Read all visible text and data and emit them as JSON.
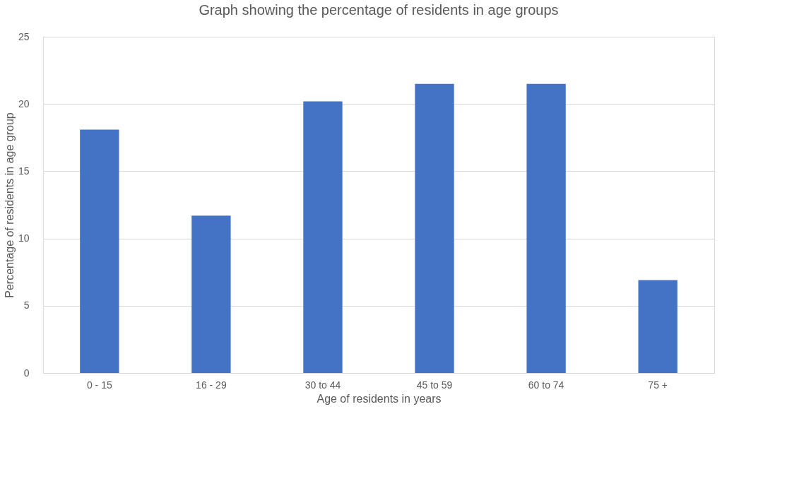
{
  "chart_data": {
    "type": "bar",
    "title": "Graph showing the percentage of residents in age groups",
    "xlabel": "Age of residents in years",
    "ylabel": "Percentage of residents in age group",
    "categories": [
      "0 - 15",
      "16 - 29",
      "30 to 44",
      "45 to 59",
      "60 to 74",
      "75 +"
    ],
    "values": [
      18.1,
      11.7,
      20.2,
      21.5,
      21.5,
      6.9
    ],
    "color": "#4472c4",
    "ylim": [
      0,
      25
    ],
    "yticks": [
      0,
      5,
      10,
      15,
      20,
      25
    ],
    "grid": "y"
  }
}
